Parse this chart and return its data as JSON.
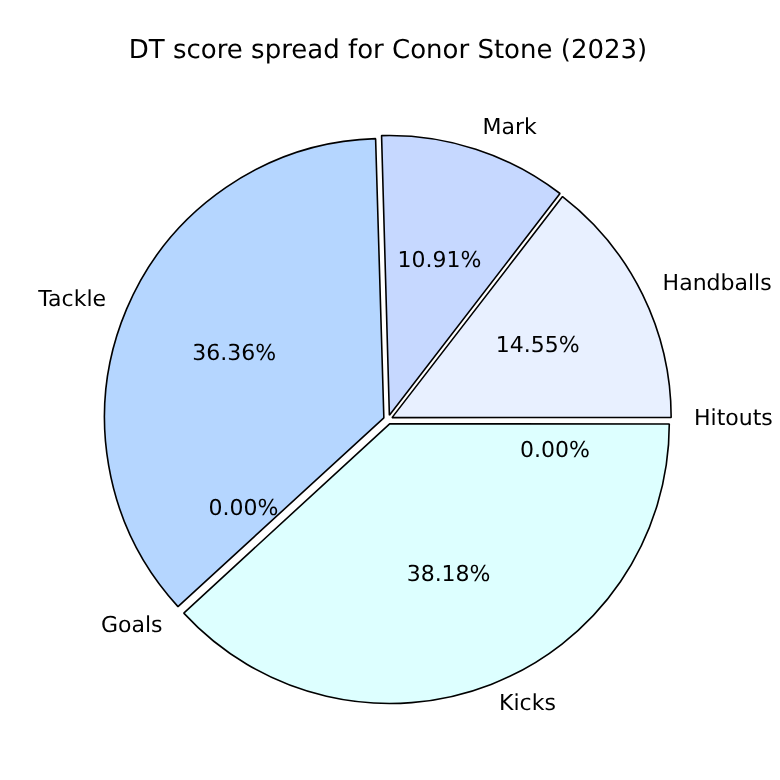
{
  "chart_data": {
    "type": "pie",
    "title": "DT score spread for Conor Stone (2023)",
    "categories": [
      "Hitouts",
      "Handballs",
      "Mark",
      "Tackle",
      "Goals",
      "Kicks"
    ],
    "values": [
      0,
      14.55,
      10.91,
      36.36,
      0,
      38.18
    ],
    "value_labels": [
      "0.00%",
      "14.55%",
      "10.91%",
      "36.36%",
      "0.00%",
      "38.18%"
    ],
    "colors": [
      "#cce0ff",
      "#e8f0ff",
      "#c6d8ff",
      "#b5d6ff",
      "#c0e8ff",
      "#ddffff"
    ],
    "legend": false
  }
}
